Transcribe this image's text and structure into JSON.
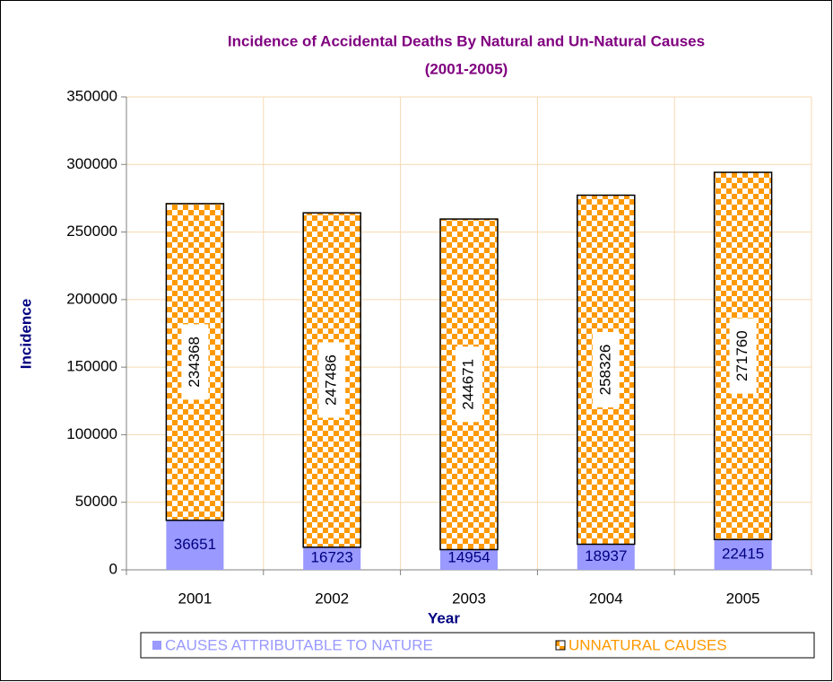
{
  "chart_data": {
    "type": "stacked_bar",
    "title": [
      "Incidence of Accidental Deaths By Natural and Un-Natural Causes",
      "(2001-2005)"
    ],
    "x_label": "Year",
    "y_label": "Incidence",
    "categories": [
      "2001",
      "2002",
      "2003",
      "2004",
      "2005"
    ],
    "series": [
      {
        "name": "CAUSES ATTRIBUTABLE TO NATURE",
        "color": "#9999ff",
        "values": [
          36651,
          16723,
          14954,
          18937,
          22415
        ]
      },
      {
        "name": "UNNATURAL CAUSES",
        "color": "#ff9900",
        "values": [
          234368,
          247486,
          244671,
          258326,
          271760
        ]
      }
    ],
    "ylim": [
      0,
      350000
    ],
    "yticks": [
      0,
      50000,
      100000,
      150000,
      200000,
      250000,
      300000,
      350000
    ],
    "grid": true,
    "legend": "bottom"
  }
}
